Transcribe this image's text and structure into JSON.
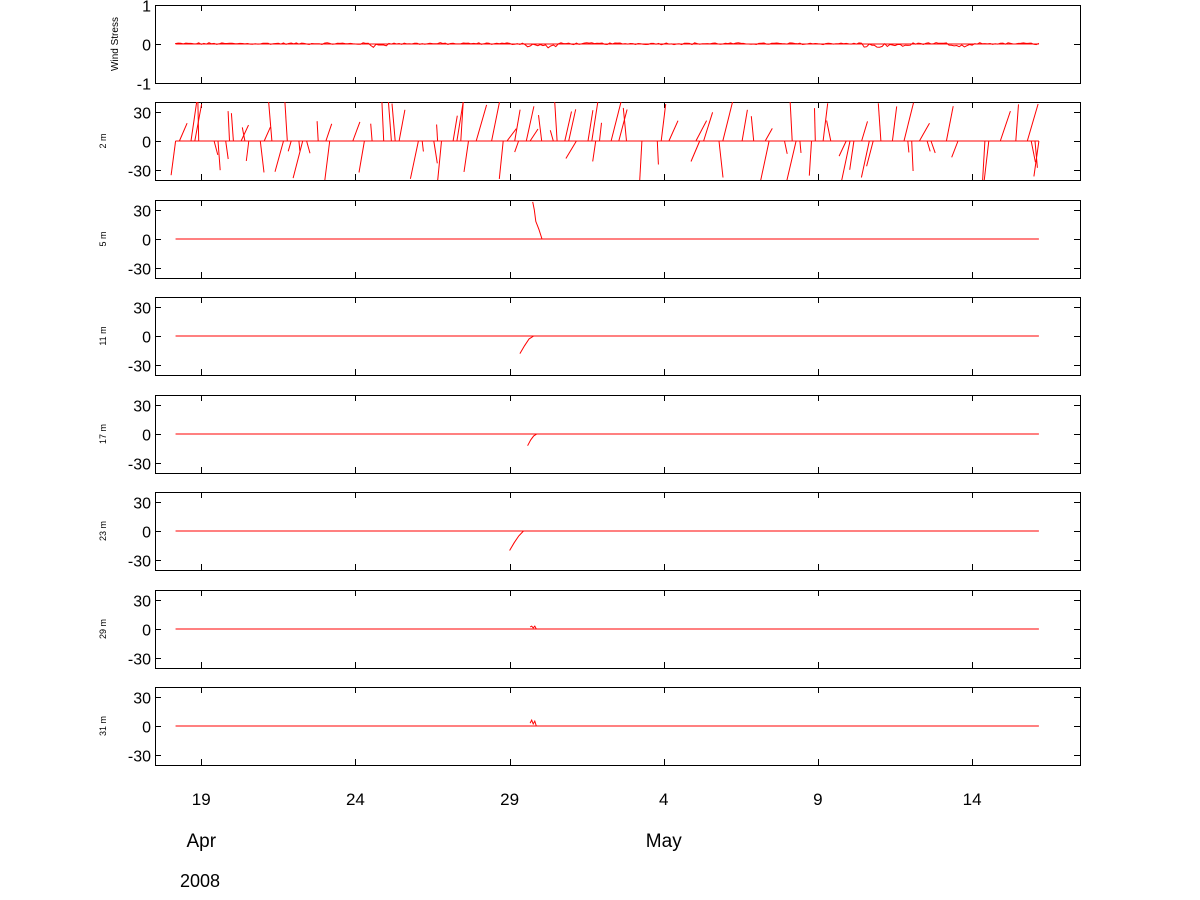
{
  "chart_data": {
    "type": "line",
    "x_axis": {
      "tick_labels": [
        "19",
        "24",
        "29",
        "4",
        "9",
        "14"
      ],
      "tick_dates": [
        "2008-04-19",
        "2008-04-24",
        "2008-04-29",
        "2008-05-04",
        "2008-05-09",
        "2008-05-14"
      ],
      "months": [
        {
          "label": "Apr",
          "date": "2008-04-19"
        },
        {
          "label": "May",
          "date": "2008-05-04"
        }
      ],
      "year": "2008",
      "xlim": [
        "2008-04-17T12:00",
        "2008-05-17T12:00"
      ],
      "data_start": "2008-04-18T04:00",
      "data_end": "2008-05-16T04:00"
    },
    "colors": {
      "series": "#ff0000",
      "axes": "#000000"
    },
    "panels": [
      {
        "ylabel": "Wind Stress",
        "ylim": [
          -1,
          1
        ],
        "yticks": [
          "1",
          "0",
          "-1"
        ],
        "kind": "wind",
        "segments": [
          {
            "start": "2008-04-18T04:00",
            "end": "2008-05-16T04:00",
            "max": 0.05
          },
          {
            "start": "2008-04-24T12:00",
            "end": "2008-04-25T00:00",
            "max": -0.1
          },
          {
            "start": "2008-04-29T12:00",
            "end": "2008-04-30T12:00",
            "max": -0.1
          },
          {
            "start": "2008-05-10T12:00",
            "end": "2008-05-12T00:00",
            "max": -0.1
          },
          {
            "start": "2008-05-13T06:00",
            "end": "2008-05-14T00:00",
            "max": -0.1
          }
        ]
      },
      {
        "ylabel": "2 m",
        "ylim": [
          -40,
          40
        ],
        "yticks": [
          "30",
          "0",
          "-30"
        ],
        "kind": "sticks",
        "density": "dense",
        "range": [
          "2008-04-18T04:00",
          "2008-05-16T04:00"
        ],
        "amplitude": 40
      },
      {
        "ylabel": "5 m",
        "ylim": [
          -40,
          40
        ],
        "yticks": [
          "30",
          "0",
          "-30"
        ],
        "kind": "event",
        "event": {
          "at": "2008-04-29T18:00",
          "points": [
            [
              0,
              38
            ],
            [
              0.05,
              30
            ],
            [
              0.1,
              18
            ],
            [
              0.2,
              10
            ],
            [
              0.3,
              0
            ]
          ]
        }
      },
      {
        "ylabel": "11 m",
        "ylim": [
          -40,
          40
        ],
        "yticks": [
          "30",
          "0",
          "-30"
        ],
        "kind": "event",
        "event": {
          "at": "2008-04-29T08:00",
          "points": [
            [
              0,
              -18
            ],
            [
              0.15,
              -10
            ],
            [
              0.3,
              -3
            ],
            [
              0.45,
              0
            ]
          ]
        }
      },
      {
        "ylabel": "17 m",
        "ylim": [
          -40,
          40
        ],
        "yticks": [
          "30",
          "0",
          "-30"
        ],
        "kind": "event",
        "event": {
          "at": "2008-04-29T14:00",
          "points": [
            [
              0,
              -12
            ],
            [
              0.1,
              -6
            ],
            [
              0.2,
              -2
            ],
            [
              0.3,
              0
            ]
          ]
        }
      },
      {
        "ylabel": "23 m",
        "ylim": [
          -40,
          40
        ],
        "yticks": [
          "30",
          "0",
          "-30"
        ],
        "kind": "event",
        "event": {
          "at": "2008-04-29T00:00",
          "points": [
            [
              0,
              -20
            ],
            [
              0.15,
              -12
            ],
            [
              0.3,
              -5
            ],
            [
              0.45,
              0
            ]
          ]
        }
      },
      {
        "ylabel": "29 m",
        "ylim": [
          -40,
          40
        ],
        "yticks": [
          "30",
          "0",
          "-30"
        ],
        "kind": "event",
        "event": {
          "at": "2008-04-29T16:00",
          "points": [
            [
              0,
              2
            ],
            [
              0.05,
              3
            ],
            [
              0.1,
              1
            ],
            [
              0.15,
              3
            ],
            [
              0.2,
              0
            ]
          ]
        }
      },
      {
        "ylabel": "31 m",
        "ylim": [
          -40,
          40
        ],
        "yticks": [
          "30",
          "0",
          "-30"
        ],
        "kind": "event",
        "event": {
          "at": "2008-04-29T16:00",
          "points": [
            [
              0,
              3
            ],
            [
              0.05,
              6
            ],
            [
              0.1,
              2
            ],
            [
              0.15,
              5
            ],
            [
              0.2,
              0
            ]
          ]
        }
      }
    ]
  }
}
